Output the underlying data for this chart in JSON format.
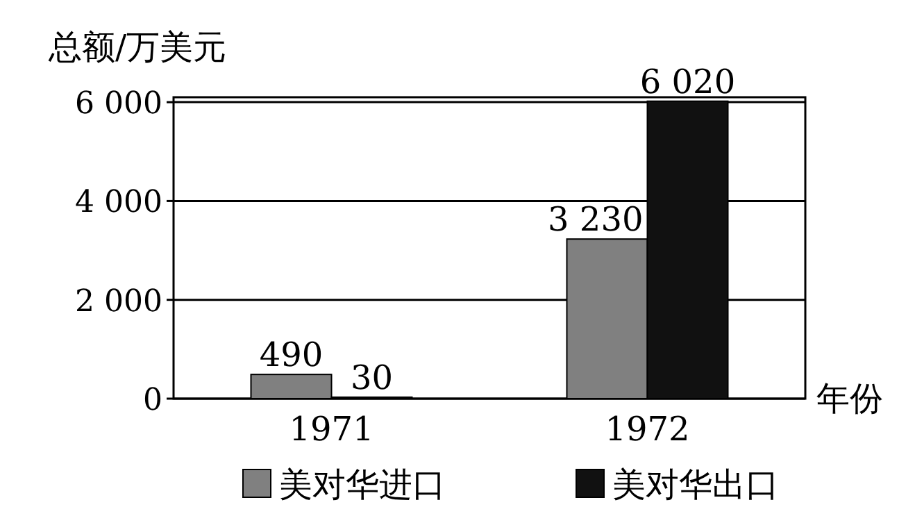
{
  "chart_data": {
    "type": "bar",
    "ylabel": "总额/万美元",
    "xlabel": "年份",
    "categories": [
      "1971",
      "1972"
    ],
    "series": [
      {
        "name": "美对华进口",
        "color": "#808080",
        "values": [
          490,
          3230
        ],
        "value_labels": [
          "490",
          "3 230"
        ]
      },
      {
        "name": "美对华出口",
        "color": "#111111",
        "values": [
          30,
          6020
        ],
        "value_labels": [
          "30",
          "6 020"
        ]
      }
    ],
    "ylim": [
      0,
      6100
    ],
    "yticks": [
      {
        "value": 0,
        "label": "0"
      },
      {
        "value": 2000,
        "label": "2 000"
      },
      {
        "value": 4000,
        "label": "4 000"
      },
      {
        "value": 6000,
        "label": "6 000"
      }
    ],
    "grid": "y",
    "legend": "bottom"
  }
}
